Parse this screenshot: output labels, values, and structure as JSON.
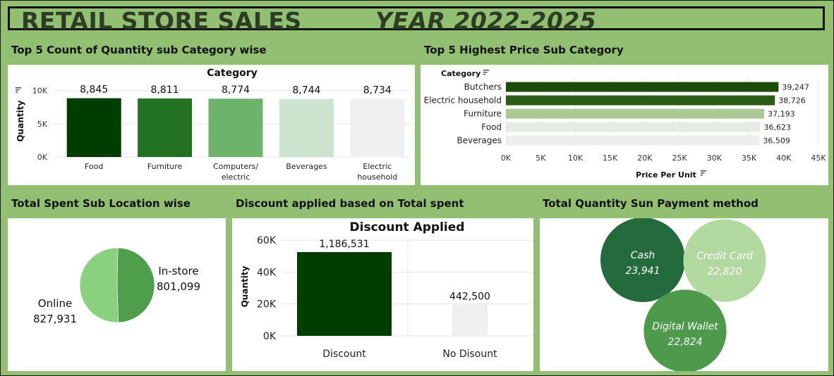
{
  "header": {
    "title_left": "RETAIL STORE SALES",
    "title_right": "YEAR 2022-2025"
  },
  "sections": {
    "qty_by_category": "Top 5 Count of Quantity sub Category wise",
    "price_by_category": "Top 5 Highest Price Sub Category",
    "spent_by_location": "Total Spent Sub Location wise",
    "discount": "Discount applied based on Total spent",
    "payment": "Total Quantity Sun Payment method"
  },
  "colors": {
    "background": "#93bf73",
    "dark_green": "#003d00",
    "green": "#237224",
    "mid_green": "#6db36c",
    "light_green": "#cde4cf",
    "pale_gray": "#f0f0f0"
  },
  "chart_data": [
    {
      "id": "qty_category",
      "type": "bar",
      "title": "Category",
      "xlabel": "",
      "ylabel": "Quantity",
      "categories": [
        "Food",
        "Furniture",
        "Computers/\nelectric",
        "Beverages",
        "Electric\nhousehold"
      ],
      "values": [
        8845,
        8811,
        8774,
        8744,
        8734
      ],
      "value_labels": [
        "8,845",
        "8,811",
        "8,774",
        "8,744",
        "8,734"
      ],
      "bar_colors": [
        "#003d00",
        "#237224",
        "#6db36c",
        "#cde4cf",
        "#f0f0f0"
      ],
      "yticks": [
        0,
        5000,
        10000
      ],
      "ytick_labels": [
        "0K",
        "5K",
        "10K"
      ],
      "ylim": [
        0,
        10700
      ],
      "grid": true
    },
    {
      "id": "price_category",
      "type": "bar",
      "orientation": "horizontal",
      "title": "",
      "category_header": "Category",
      "xlabel": "Price Per Unit",
      "categories": [
        "Butchers",
        "Electric household",
        "Furniture",
        "Food",
        "Beverages"
      ],
      "values": [
        39247,
        38726,
        37193,
        36623,
        36509
      ],
      "value_labels": [
        "39,247",
        "38,726",
        "37,193",
        "36,623",
        "36,509"
      ],
      "bar_colors": [
        "#1e4a0c",
        "#2a5c16",
        "#aac995",
        "#e6ebe5",
        "#eeeeee"
      ],
      "xticks": [
        0,
        5000,
        10000,
        15000,
        20000,
        25000,
        30000,
        35000,
        40000,
        45000
      ],
      "xtick_labels": [
        "0K",
        "5K",
        "10K",
        "15K",
        "20K",
        "25K",
        "30K",
        "35K",
        "40K",
        "45K"
      ],
      "xlim": [
        0,
        45000
      ],
      "grid": true
    },
    {
      "id": "spent_location",
      "type": "pie",
      "labels": [
        "In-store",
        "Online"
      ],
      "values": [
        801099,
        827931
      ],
      "value_labels": [
        "801,099",
        "827,931"
      ],
      "colors": [
        "#4e9e4c",
        "#8ad17f"
      ]
    },
    {
      "id": "discount",
      "type": "bar",
      "title": "Discount Applied",
      "ylabel": "Quantity",
      "categories": [
        "Discount",
        "No Disount"
      ],
      "values": [
        1186531,
        442500
      ],
      "value_labels": [
        "1,186,531",
        "442,500"
      ],
      "bar_colors": [
        "#003d00",
        "#f0f0f0"
      ],
      "yticks": [
        0,
        20000,
        40000,
        60000
      ],
      "ytick_labels": [
        "0K",
        "20K",
        "40K",
        "60K"
      ],
      "grid": true,
      "note": ""
    },
    {
      "id": "payment",
      "type": "bubble",
      "labels": [
        "Cash",
        "Credit Card",
        "Digital Wallet"
      ],
      "values": [
        23941,
        22820,
        22824
      ],
      "value_labels": [
        "23,941",
        "22,820",
        "22,824"
      ],
      "colors": [
        "#236b3d",
        "#b2d99f",
        "#4e9a4c"
      ]
    }
  ]
}
